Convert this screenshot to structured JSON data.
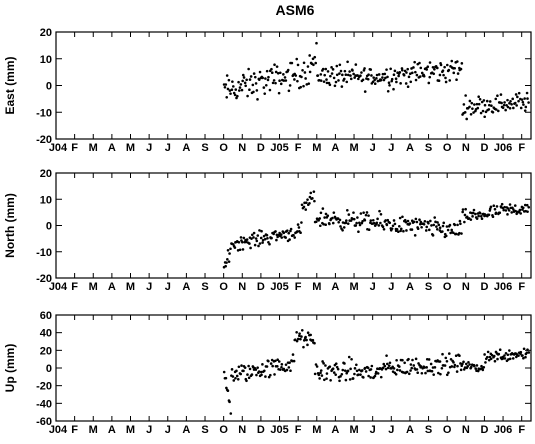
{
  "chart_data": [
    {
      "type": "scatter",
      "title": "ASM6",
      "ylabel": "East (mm)",
      "ylim": [
        -20,
        20
      ],
      "yticks": [
        -20,
        -10,
        0,
        10,
        20
      ],
      "x_tick_labels": [
        "J04",
        "F",
        "M",
        "A",
        "M",
        "J",
        "J",
        "A",
        "S",
        "O",
        "N",
        "D",
        "J05",
        "F",
        "M",
        "A",
        "M",
        "J",
        "J",
        "A",
        "S",
        "O",
        "N",
        "D",
        "J06",
        "F"
      ],
      "x_unit": "months since Jan 2004",
      "xlim": [
        0,
        25.5
      ],
      "grid": false,
      "series": [
        {
          "segments": [
            {
              "x_start": 9.0,
              "x_end": 13.4,
              "y_start": -2,
              "y_end": 5,
              "spread": 6
            },
            {
              "x_start": 13.4,
              "x_end": 14.0,
              "y_start": 6,
              "y_end": 10,
              "spread": 7
            },
            {
              "x_start": 14.0,
              "x_end": 17.0,
              "y_start": 4,
              "y_end": 3,
              "spread": 5
            },
            {
              "x_start": 17.0,
              "x_end": 21.8,
              "y_start": 3,
              "y_end": 6,
              "spread": 5
            },
            {
              "x_start": 21.8,
              "x_end": 25.4,
              "y_start": -8,
              "y_end": -6,
              "spread": 4
            }
          ]
        }
      ]
    },
    {
      "type": "scatter",
      "title": "",
      "ylabel": "North (mm)",
      "ylim": [
        -20,
        20
      ],
      "yticks": [
        -20,
        -10,
        0,
        10,
        20
      ],
      "x_tick_labels": [
        "J04",
        "F",
        "M",
        "A",
        "M",
        "J",
        "J",
        "A",
        "S",
        "O",
        "N",
        "D",
        "J05",
        "F",
        "M",
        "A",
        "M",
        "J",
        "J",
        "A",
        "S",
        "O",
        "N",
        "D",
        "J06",
        "F"
      ],
      "x_unit": "months since Jan 2004",
      "xlim": [
        0,
        25.5
      ],
      "grid": false,
      "series": [
        {
          "segments": [
            {
              "x_start": 9.0,
              "x_end": 9.4,
              "y_start": -18,
              "y_end": -8,
              "spread": 3
            },
            {
              "x_start": 9.4,
              "x_end": 13.2,
              "y_start": -7,
              "y_end": -2,
              "spread": 3
            },
            {
              "x_start": 13.2,
              "x_end": 13.9,
              "y_start": 6,
              "y_end": 11,
              "spread": 3
            },
            {
              "x_start": 13.9,
              "x_end": 21.8,
              "y_start": 3,
              "y_end": -2,
              "spread": 4
            },
            {
              "x_start": 21.8,
              "x_end": 25.4,
              "y_start": 3,
              "y_end": 7,
              "spread": 3
            }
          ]
        }
      ]
    },
    {
      "type": "scatter",
      "title": "",
      "ylabel": "Up (mm)",
      "ylim": [
        -60,
        60
      ],
      "yticks": [
        -60,
        -40,
        -20,
        0,
        20,
        40,
        60
      ],
      "x_tick_labels": [
        "J04",
        "F",
        "M",
        "A",
        "M",
        "J",
        "J",
        "A",
        "S",
        "O",
        "N",
        "D",
        "J05",
        "F",
        "M",
        "A",
        "M",
        "J",
        "J",
        "A",
        "S",
        "O",
        "N",
        "D",
        "J06",
        "F"
      ],
      "x_unit": "months since Jan 2004",
      "xlim": [
        0,
        25.5
      ],
      "grid": false,
      "series": [
        {
          "segments": [
            {
              "x_start": 9.0,
              "x_end": 9.4,
              "y_start": -5,
              "y_end": -50,
              "spread": 8
            },
            {
              "x_start": 9.4,
              "x_end": 12.8,
              "y_start": -8,
              "y_end": 5,
              "spread": 12
            },
            {
              "x_start": 12.8,
              "x_end": 13.9,
              "y_start": 35,
              "y_end": 30,
              "spread": 10
            },
            {
              "x_start": 13.9,
              "x_end": 17.5,
              "y_start": -3,
              "y_end": -5,
              "spread": 14
            },
            {
              "x_start": 17.5,
              "x_end": 22.0,
              "y_start": 0,
              "y_end": 5,
              "spread": 12
            },
            {
              "x_start": 22.0,
              "x_end": 23.0,
              "y_start": 2,
              "y_end": 0,
              "spread": 5
            },
            {
              "x_start": 23.0,
              "x_end": 25.4,
              "y_start": 12,
              "y_end": 18,
              "spread": 8
            }
          ]
        }
      ]
    }
  ]
}
